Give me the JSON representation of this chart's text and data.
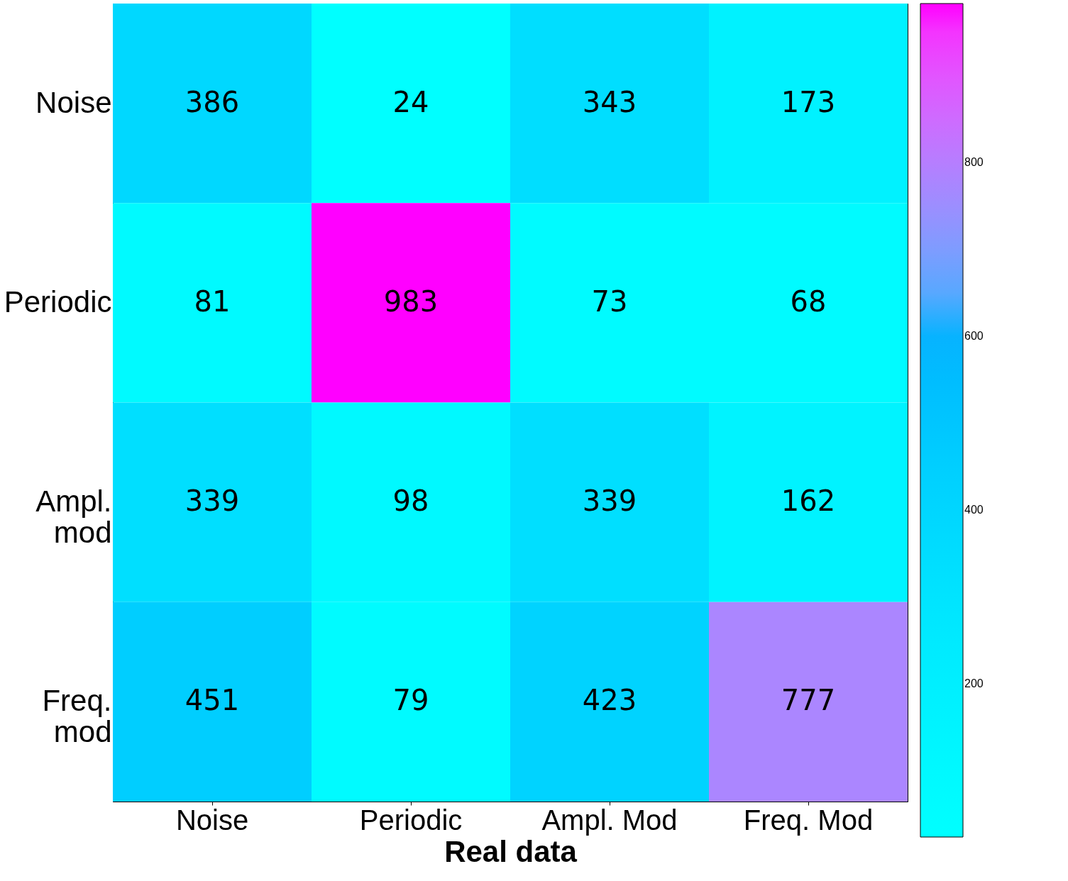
{
  "chart_data": {
    "type": "heatmap",
    "xlabel": "Real data",
    "categories": [
      "Noise",
      "Periodic",
      "Ampl. Mod",
      "Freq. Mod"
    ],
    "y_categories": [
      "Noise",
      "Periodic",
      "Ampl. mod",
      "Freq. mod"
    ],
    "cells": [
      [
        386,
        24,
        343,
        173
      ],
      [
        81,
        983,
        73,
        68
      ],
      [
        339,
        98,
        339,
        162
      ],
      [
        451,
        79,
        423,
        777
      ]
    ],
    "data_labels": true,
    "clim": [
      24,
      983
    ],
    "cticks": [
      200,
      400,
      600,
      800
    ],
    "colors": [
      "#00ffff",
      "#ff00ff"
    ]
  }
}
